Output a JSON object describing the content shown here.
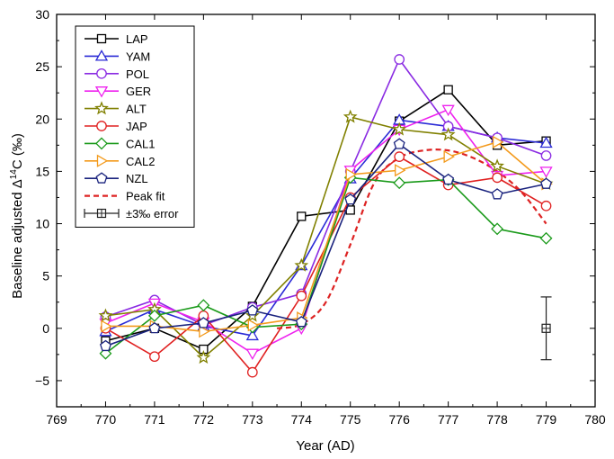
{
  "chart_data": {
    "type": "line",
    "xlabel": "Year (AD)",
    "ylabel_parts": {
      "prefix": "Baseline adjusted Δ",
      "sup": "14",
      "suffix": "C (‰)"
    },
    "xlim": [
      769,
      780
    ],
    "ylim": [
      -7.5,
      30
    ],
    "x_ticks": [
      769,
      770,
      771,
      772,
      773,
      774,
      775,
      776,
      777,
      778,
      779,
      780
    ],
    "y_ticks": [
      -5,
      0,
      5,
      10,
      15,
      20,
      25,
      30
    ],
    "grid": false,
    "legend_position": "top-left",
    "x": [
      770,
      771,
      772,
      773,
      774,
      775,
      776,
      777,
      778,
      779
    ],
    "series": [
      {
        "name": "LAP",
        "color": "#000000",
        "marker": "square",
        "values": [
          -1.2,
          0.0,
          -2.0,
          2.1,
          10.7,
          11.3,
          19.8,
          22.8,
          17.5,
          17.9
        ]
      },
      {
        "name": "YAM",
        "color": "#2a2ad6",
        "marker": "triangle-up",
        "values": [
          -0.3,
          1.8,
          0.2,
          -0.7,
          6.0,
          14.3,
          19.9,
          19.3,
          18.2,
          17.7
        ]
      },
      {
        "name": "POL",
        "color": "#8a2be2",
        "marker": "circle",
        "values": [
          1.1,
          2.7,
          0.3,
          2.0,
          3.3,
          15.0,
          25.7,
          19.3,
          18.2,
          16.5
        ]
      },
      {
        "name": "GER",
        "color": "#ee22ee",
        "marker": "triangle-down",
        "values": [
          0.5,
          2.4,
          0.6,
          -2.4,
          0.0,
          15.1,
          19.0,
          20.9,
          14.6,
          15.0
        ]
      },
      {
        "name": "ALT",
        "color": "#808000",
        "marker": "star",
        "values": [
          1.2,
          1.8,
          -2.8,
          1.2,
          6.0,
          20.2,
          19.0,
          18.5,
          15.5,
          13.8
        ]
      },
      {
        "name": "JAP",
        "color": "#e02020",
        "marker": "circle",
        "values": [
          0.0,
          -2.7,
          1.2,
          -4.2,
          3.1,
          12.5,
          16.4,
          13.7,
          14.4,
          11.7
        ]
      },
      {
        "name": "CAL1",
        "color": "#1a9a1a",
        "marker": "diamond",
        "values": [
          -2.4,
          1.2,
          2.2,
          0.1,
          0.4,
          14.4,
          13.9,
          14.2,
          9.5,
          8.6
        ]
      },
      {
        "name": "CAL2",
        "color": "#f39a1c",
        "marker": "triangle-right",
        "values": [
          0.2,
          0.2,
          -0.3,
          0.3,
          1.0,
          14.7,
          15.1,
          16.4,
          17.8,
          13.8
        ]
      },
      {
        "name": "NZL",
        "color": "#1a237e",
        "marker": "pentagon",
        "values": [
          -1.7,
          0.0,
          0.5,
          1.7,
          0.6,
          12.3,
          17.6,
          14.2,
          12.8,
          13.8
        ]
      }
    ],
    "peak_fit": {
      "name": "Peak fit",
      "color": "#dd2222",
      "x": [
        773.5,
        774.0,
        774.5,
        775.0,
        775.5,
        776.0,
        776.5,
        777.0,
        777.5,
        778.0,
        778.5,
        779.0
      ],
      "values": [
        0.0,
        0.4,
        2.5,
        8.0,
        14.0,
        16.3,
        17.0,
        17.0,
        16.3,
        15.0,
        13.0,
        10.0
      ]
    },
    "error_bar": {
      "label": "±3‰ error",
      "x": 779,
      "value": 0,
      "error": 3
    }
  }
}
